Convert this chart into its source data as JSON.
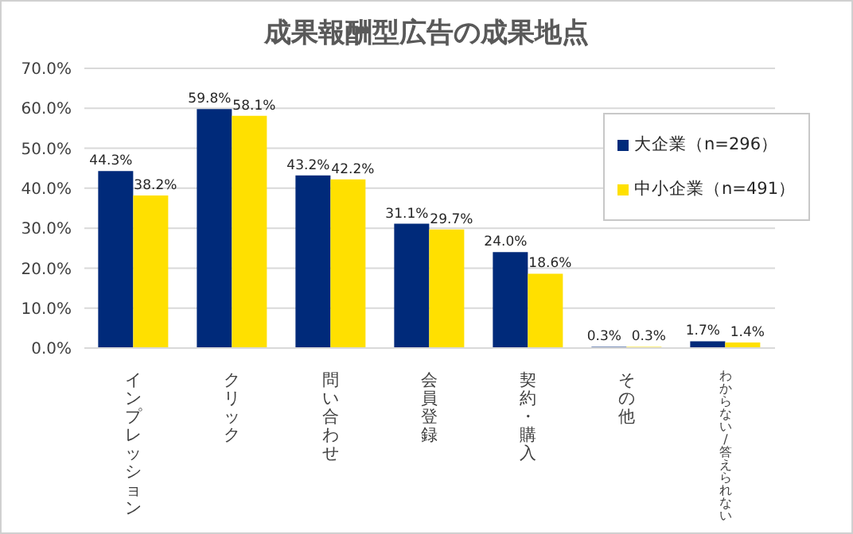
{
  "chart_data": {
    "type": "bar",
    "title": "成果報酬型広告の成果地点",
    "categories": [
      "インプレッション",
      "クリック",
      "問い合わせ",
      "会員登録",
      "契約・購入",
      "その他",
      "わからない/答えられない"
    ],
    "series": [
      {
        "name": "大企業（n=296）",
        "color": "#002a7a",
        "values": [
          44.3,
          59.8,
          43.2,
          31.1,
          24.0,
          0.3,
          1.7
        ],
        "value_labels": [
          "44.3%",
          "59.8%",
          "43.2%",
          "31.1%",
          "24.0%",
          "0.3%",
          "1.7%"
        ]
      },
      {
        "name": "中小企業（n=491）",
        "color": "#ffe000",
        "values": [
          38.2,
          58.1,
          42.2,
          29.7,
          18.6,
          0.3,
          1.4
        ],
        "value_labels": [
          "38.2%",
          "58.1%",
          "42.2%",
          "29.7%",
          "18.6%",
          "0.3%",
          "1.4%"
        ]
      }
    ],
    "ylim": [
      0,
      70
    ],
    "yticks": [
      {
        "value": 0,
        "label": "0.0%"
      },
      {
        "value": 10,
        "label": "10.0%"
      },
      {
        "value": 20,
        "label": "20.0%"
      },
      {
        "value": 30,
        "label": "30.0%"
      },
      {
        "value": 40,
        "label": "40.0%"
      },
      {
        "value": 50,
        "label": "50.0%"
      },
      {
        "value": 60,
        "label": "60.0%"
      },
      {
        "value": 70,
        "label": "70.0%"
      }
    ],
    "grid": "y",
    "legend": "right"
  }
}
